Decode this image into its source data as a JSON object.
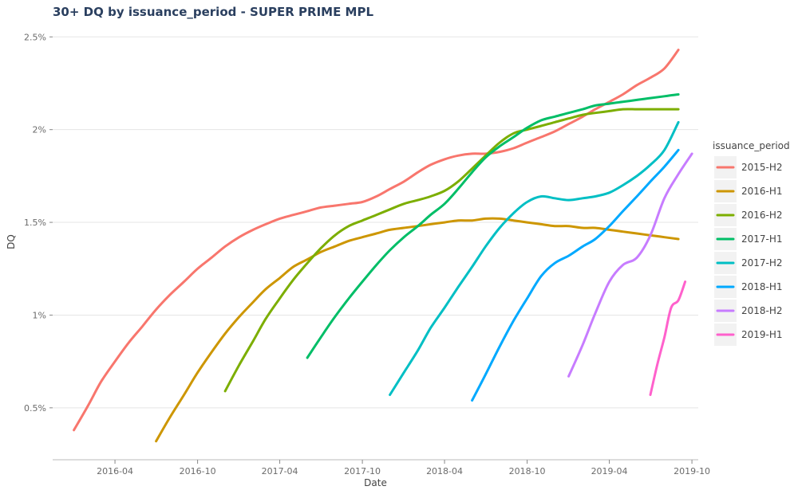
{
  "chart_data": {
    "type": "line",
    "title": "30+ DQ by issuance_period - SUPER PRIME MPL",
    "xlabel": "Date",
    "ylabel": "DQ",
    "x_ticks": [
      "2016-04",
      "2016-10",
      "2017-04",
      "2017-10",
      "2018-04",
      "2018-10",
      "2019-04",
      "2019-10"
    ],
    "y_ticks": [
      0.005,
      0.01,
      0.015,
      0.02,
      0.025
    ],
    "y_tick_labels": [
      "0.5%",
      "1%",
      "1.5%",
      "2%",
      "2.5%"
    ],
    "xlim": [
      "2015-11-15",
      "2019-10-15"
    ],
    "ylim": [
      0.0022,
      0.0257
    ],
    "grid": true,
    "legend_title": "issuance_period",
    "legend_position": "right",
    "series": [
      {
        "name": "2015-H2",
        "color": "#F8766D",
        "points": [
          [
            "2016-01-01",
            0.0038
          ],
          [
            "2016-02-01",
            0.0051
          ],
          [
            "2016-03-01",
            0.0064
          ],
          [
            "2016-04-01",
            0.0075
          ],
          [
            "2016-05-01",
            0.0085
          ],
          [
            "2016-06-01",
            0.0094
          ],
          [
            "2016-07-01",
            0.0103
          ],
          [
            "2016-08-01",
            0.0111
          ],
          [
            "2016-09-01",
            0.0118
          ],
          [
            "2016-10-01",
            0.0125
          ],
          [
            "2016-11-01",
            0.0131
          ],
          [
            "2016-12-01",
            0.0137
          ],
          [
            "2017-01-01",
            0.0142
          ],
          [
            "2017-02-01",
            0.0146
          ],
          [
            "2017-03-01",
            0.0149
          ],
          [
            "2017-04-01",
            0.0152
          ],
          [
            "2017-05-01",
            0.0154
          ],
          [
            "2017-06-01",
            0.0156
          ],
          [
            "2017-07-01",
            0.0158
          ],
          [
            "2017-08-01",
            0.0159
          ],
          [
            "2017-09-01",
            0.016
          ],
          [
            "2017-10-01",
            0.0161
          ],
          [
            "2017-11-01",
            0.0164
          ],
          [
            "2017-12-01",
            0.0168
          ],
          [
            "2018-01-01",
            0.0172
          ],
          [
            "2018-02-01",
            0.0177
          ],
          [
            "2018-03-01",
            0.0181
          ],
          [
            "2018-04-01",
            0.0184
          ],
          [
            "2018-05-01",
            0.0186
          ],
          [
            "2018-06-01",
            0.0187
          ],
          [
            "2018-07-01",
            0.0187
          ],
          [
            "2018-08-01",
            0.0188
          ],
          [
            "2018-09-01",
            0.019
          ],
          [
            "2018-10-01",
            0.0193
          ],
          [
            "2018-11-01",
            0.0196
          ],
          [
            "2018-12-01",
            0.0199
          ],
          [
            "2019-01-01",
            0.0203
          ],
          [
            "2019-02-01",
            0.0207
          ],
          [
            "2019-03-01",
            0.0211
          ],
          [
            "2019-04-01",
            0.0215
          ],
          [
            "2019-05-01",
            0.0219
          ],
          [
            "2019-06-01",
            0.0224
          ],
          [
            "2019-07-01",
            0.0228
          ],
          [
            "2019-08-01",
            0.0233
          ],
          [
            "2019-09-01",
            0.0243
          ]
        ]
      },
      {
        "name": "2016-H1",
        "color": "#CD9600",
        "points": [
          [
            "2016-07-01",
            0.0032
          ],
          [
            "2016-08-01",
            0.0045
          ],
          [
            "2016-09-01",
            0.0057
          ],
          [
            "2016-10-01",
            0.0069
          ],
          [
            "2016-11-01",
            0.008
          ],
          [
            "2016-12-01",
            0.009
          ],
          [
            "2017-01-01",
            0.0099
          ],
          [
            "2017-02-01",
            0.0107
          ],
          [
            "2017-03-01",
            0.0114
          ],
          [
            "2017-04-01",
            0.012
          ],
          [
            "2017-05-01",
            0.0126
          ],
          [
            "2017-06-01",
            0.013
          ],
          [
            "2017-07-01",
            0.0134
          ],
          [
            "2017-08-01",
            0.0137
          ],
          [
            "2017-09-01",
            0.014
          ],
          [
            "2017-10-01",
            0.0142
          ],
          [
            "2017-11-01",
            0.0144
          ],
          [
            "2017-12-01",
            0.0146
          ],
          [
            "2018-01-01",
            0.0147
          ],
          [
            "2018-02-01",
            0.0148
          ],
          [
            "2018-03-01",
            0.0149
          ],
          [
            "2018-04-01",
            0.015
          ],
          [
            "2018-05-01",
            0.0151
          ],
          [
            "2018-06-01",
            0.0151
          ],
          [
            "2018-07-01",
            0.0152
          ],
          [
            "2018-08-01",
            0.0152
          ],
          [
            "2018-09-01",
            0.0151
          ],
          [
            "2018-10-01",
            0.015
          ],
          [
            "2018-11-01",
            0.0149
          ],
          [
            "2018-12-01",
            0.0148
          ],
          [
            "2019-01-01",
            0.0148
          ],
          [
            "2019-02-01",
            0.0147
          ],
          [
            "2019-03-01",
            0.0147
          ],
          [
            "2019-04-01",
            0.0146
          ],
          [
            "2019-05-01",
            0.0145
          ],
          [
            "2019-06-01",
            0.0144
          ],
          [
            "2019-07-01",
            0.0143
          ],
          [
            "2019-08-01",
            0.0142
          ],
          [
            "2019-09-01",
            0.0141
          ]
        ]
      },
      {
        "name": "2016-H2",
        "color": "#7CAE00",
        "points": [
          [
            "2016-12-01",
            0.0059
          ],
          [
            "2017-01-01",
            0.0073
          ],
          [
            "2017-02-01",
            0.0086
          ],
          [
            "2017-03-01",
            0.0098
          ],
          [
            "2017-04-01",
            0.0109
          ],
          [
            "2017-05-01",
            0.0119
          ],
          [
            "2017-06-01",
            0.0128
          ],
          [
            "2017-07-01",
            0.0136
          ],
          [
            "2017-08-01",
            0.0143
          ],
          [
            "2017-09-01",
            0.0148
          ],
          [
            "2017-10-01",
            0.0151
          ],
          [
            "2017-11-01",
            0.0154
          ],
          [
            "2017-12-01",
            0.0157
          ],
          [
            "2018-01-01",
            0.016
          ],
          [
            "2018-02-01",
            0.0162
          ],
          [
            "2018-03-01",
            0.0164
          ],
          [
            "2018-04-01",
            0.0167
          ],
          [
            "2018-05-01",
            0.0172
          ],
          [
            "2018-06-01",
            0.0179
          ],
          [
            "2018-07-01",
            0.0186
          ],
          [
            "2018-08-01",
            0.0193
          ],
          [
            "2018-09-01",
            0.0198
          ],
          [
            "2018-10-01",
            0.02
          ],
          [
            "2018-11-01",
            0.0202
          ],
          [
            "2018-12-01",
            0.0204
          ],
          [
            "2019-01-01",
            0.0206
          ],
          [
            "2019-02-01",
            0.0208
          ],
          [
            "2019-03-01",
            0.0209
          ],
          [
            "2019-04-01",
            0.021
          ],
          [
            "2019-05-01",
            0.0211
          ],
          [
            "2019-06-01",
            0.0211
          ],
          [
            "2019-07-01",
            0.0211
          ],
          [
            "2019-08-01",
            0.0211
          ],
          [
            "2019-09-01",
            0.0211
          ]
        ]
      },
      {
        "name": "2017-H1",
        "color": "#00BE67",
        "points": [
          [
            "2017-06-01",
            0.0077
          ],
          [
            "2017-07-01",
            0.0088
          ],
          [
            "2017-08-01",
            0.0099
          ],
          [
            "2017-09-01",
            0.0109
          ],
          [
            "2017-10-01",
            0.0118
          ],
          [
            "2017-11-01",
            0.0127
          ],
          [
            "2017-12-01",
            0.0135
          ],
          [
            "2018-01-01",
            0.0142
          ],
          [
            "2018-02-01",
            0.0148
          ],
          [
            "2018-03-01",
            0.0154
          ],
          [
            "2018-04-01",
            0.016
          ],
          [
            "2018-05-01",
            0.0168
          ],
          [
            "2018-06-01",
            0.0177
          ],
          [
            "2018-07-01",
            0.0185
          ],
          [
            "2018-08-01",
            0.0191
          ],
          [
            "2018-09-01",
            0.0196
          ],
          [
            "2018-10-01",
            0.0201
          ],
          [
            "2018-11-01",
            0.0205
          ],
          [
            "2018-12-01",
            0.0207
          ],
          [
            "2019-01-01",
            0.0209
          ],
          [
            "2019-02-01",
            0.0211
          ],
          [
            "2019-03-01",
            0.0213
          ],
          [
            "2019-04-01",
            0.0214
          ],
          [
            "2019-05-01",
            0.0215
          ],
          [
            "2019-06-01",
            0.0216
          ],
          [
            "2019-07-01",
            0.0217
          ],
          [
            "2019-08-01",
            0.0218
          ],
          [
            "2019-09-01",
            0.0219
          ]
        ]
      },
      {
        "name": "2017-H2",
        "color": "#00BFC4",
        "points": [
          [
            "2017-12-01",
            0.0057
          ],
          [
            "2018-01-01",
            0.0069
          ],
          [
            "2018-02-01",
            0.0081
          ],
          [
            "2018-03-01",
            0.0093
          ],
          [
            "2018-04-01",
            0.0104
          ],
          [
            "2018-05-01",
            0.0115
          ],
          [
            "2018-06-01",
            0.0126
          ],
          [
            "2018-07-01",
            0.0137
          ],
          [
            "2018-08-01",
            0.0147
          ],
          [
            "2018-09-01",
            0.0155
          ],
          [
            "2018-10-01",
            0.0161
          ],
          [
            "2018-11-01",
            0.0164
          ],
          [
            "2018-12-01",
            0.0163
          ],
          [
            "2019-01-01",
            0.0162
          ],
          [
            "2019-02-01",
            0.0163
          ],
          [
            "2019-03-01",
            0.0164
          ],
          [
            "2019-04-01",
            0.0166
          ],
          [
            "2019-05-01",
            0.017
          ],
          [
            "2019-06-01",
            0.0175
          ],
          [
            "2019-07-01",
            0.0181
          ],
          [
            "2019-08-01",
            0.0189
          ],
          [
            "2019-09-01",
            0.0204
          ]
        ]
      },
      {
        "name": "2018-H1",
        "color": "#00A9FF",
        "points": [
          [
            "2018-06-01",
            0.0054
          ],
          [
            "2018-07-01",
            0.0068
          ],
          [
            "2018-08-01",
            0.0083
          ],
          [
            "2018-09-01",
            0.0097
          ],
          [
            "2018-10-01",
            0.0109
          ],
          [
            "2018-11-01",
            0.0121
          ],
          [
            "2018-12-01",
            0.0128
          ],
          [
            "2019-01-01",
            0.0132
          ],
          [
            "2019-02-01",
            0.0137
          ],
          [
            "2019-03-01",
            0.0141
          ],
          [
            "2019-04-01",
            0.0148
          ],
          [
            "2019-05-01",
            0.0156
          ],
          [
            "2019-06-01",
            0.0164
          ],
          [
            "2019-07-01",
            0.0172
          ],
          [
            "2019-08-01",
            0.018
          ],
          [
            "2019-09-01",
            0.0189
          ]
        ]
      },
      {
        "name": "2018-H2",
        "color": "#C77CFF",
        "points": [
          [
            "2019-01-01",
            0.0067
          ],
          [
            "2019-02-01",
            0.0084
          ],
          [
            "2019-03-01",
            0.0101
          ],
          [
            "2019-04-01",
            0.0118
          ],
          [
            "2019-05-01",
            0.0127
          ],
          [
            "2019-06-01",
            0.0131
          ],
          [
            "2019-07-01",
            0.0143
          ],
          [
            "2019-08-01",
            0.0163
          ],
          [
            "2019-09-01",
            0.0176
          ],
          [
            "2019-10-01",
            0.0187
          ]
        ]
      },
      {
        "name": "2019-H1",
        "color": "#FF61CC",
        "points": [
          [
            "2019-07-01",
            0.0057
          ],
          [
            "2019-07-16",
            0.0073
          ],
          [
            "2019-08-01",
            0.0088
          ],
          [
            "2019-08-16",
            0.0104
          ],
          [
            "2019-09-01",
            0.0108
          ],
          [
            "2019-09-16",
            0.0118
          ]
        ]
      }
    ]
  }
}
